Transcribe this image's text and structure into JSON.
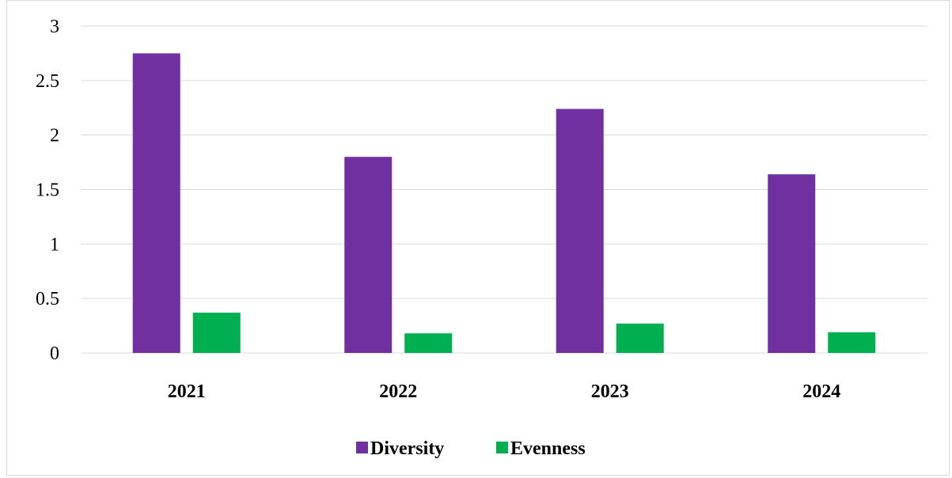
{
  "chart_data": {
    "type": "bar",
    "categories": [
      "2021",
      "2022",
      "2023",
      "2024"
    ],
    "series": [
      {
        "name": "Diversity",
        "values": [
          2.75,
          1.8,
          2.24,
          1.64
        ],
        "color": "#7030a0"
      },
      {
        "name": "Evenness",
        "values": [
          0.37,
          0.18,
          0.27,
          0.19
        ],
        "color": "#00b050"
      }
    ],
    "ylim": [
      0,
      3
    ],
    "yticks": [
      "0",
      "0.5",
      "1",
      "1.5",
      "2",
      "2.5",
      "3"
    ],
    "ytick_values": [
      0,
      0.5,
      1,
      1.5,
      2,
      2.5,
      3
    ],
    "title": "",
    "xlabel": "",
    "ylabel": "",
    "grid": true,
    "gridline_color": "#d9d9d9",
    "legend_position": "bottom"
  }
}
